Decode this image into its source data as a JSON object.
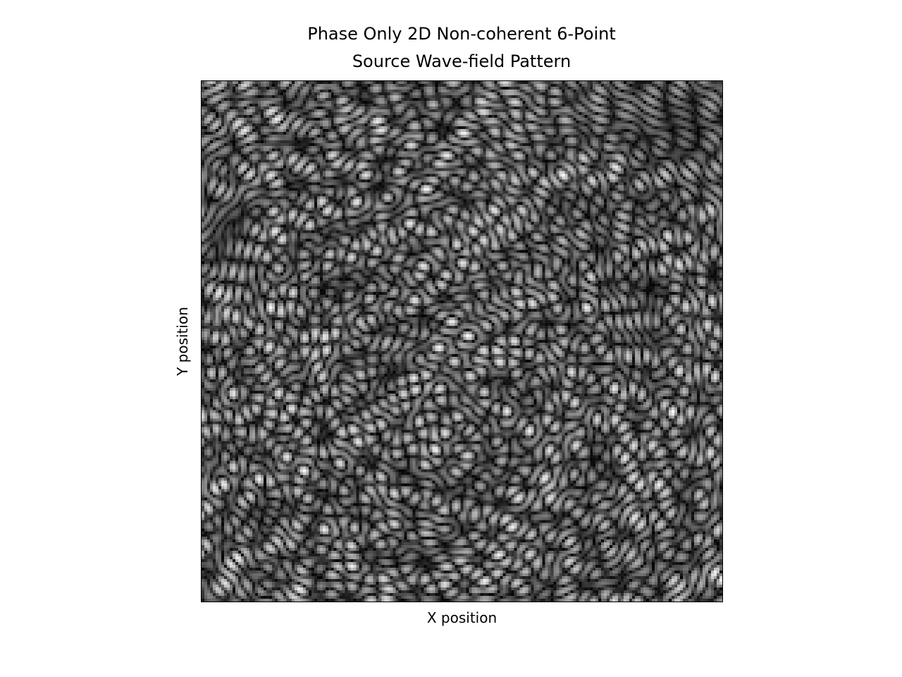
{
  "chart_data": {
    "type": "heatmap",
    "title_lines": [
      "Phase Only 2D Non-coherent 6-Point",
      "Source Wave-field Pattern"
    ],
    "xlabel": "X position",
    "ylabel": "Y position",
    "x_ticks_visible": false,
    "y_ticks_visible": false,
    "colormap": "gray",
    "grid": false,
    "legend": "none",
    "colors": {
      "frame": "#000000",
      "background": "#ffffff",
      "low": "#000000",
      "high": "#ffffff"
    }
  }
}
